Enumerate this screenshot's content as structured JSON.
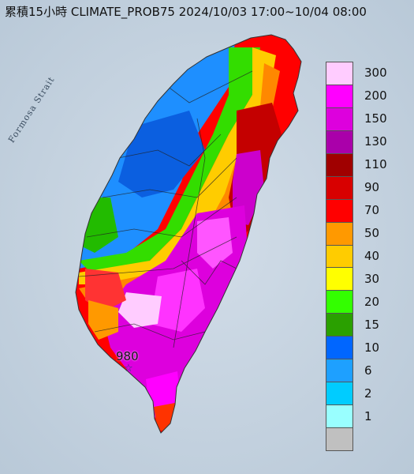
{
  "title": "累積15小時 CLIMATE_PROB75 2024/10/03 17:00~10/04 08:00",
  "sea_label": "Formosa Strait",
  "max_point": {
    "value": "980"
  },
  "legend": [
    {
      "label": "300",
      "color": "#ffccff"
    },
    {
      "label": "200",
      "color": "#ff00ff"
    },
    {
      "label": "150",
      "color": "#dd00dd"
    },
    {
      "label": "130",
      "color": "#aa00aa"
    },
    {
      "label": "110",
      "color": "#a00000"
    },
    {
      "label": "90",
      "color": "#d80000"
    },
    {
      "label": "70",
      "color": "#ff0000"
    },
    {
      "label": "50",
      "color": "#ff9900"
    },
    {
      "label": "40",
      "color": "#ffcc00"
    },
    {
      "label": "30",
      "color": "#ffff00"
    },
    {
      "label": "20",
      "color": "#33ff00"
    },
    {
      "label": "15",
      "color": "#2aa000"
    },
    {
      "label": "10",
      "color": "#0066ff"
    },
    {
      "label": "6",
      "color": "#1ea0ff"
    },
    {
      "label": "2",
      "color": "#00ccff"
    },
    {
      "label": "1",
      "color": "#99ffff"
    },
    {
      "label": "",
      "color": "#c0c0c0"
    }
  ]
}
